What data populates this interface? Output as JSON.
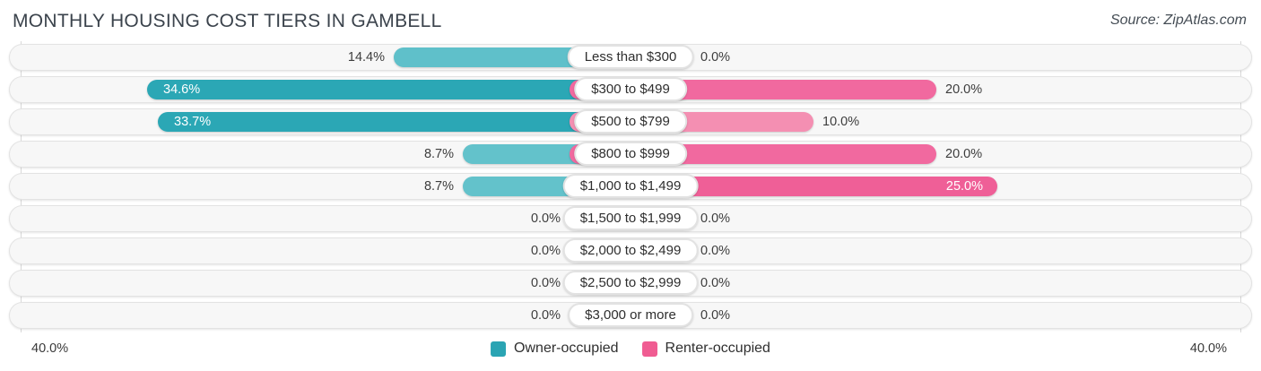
{
  "header": {
    "title": "MONTHLY HOUSING COST TIERS IN GAMBELL",
    "source": "Source: ZipAtlas.com"
  },
  "axis": {
    "left_label": "40.0%",
    "right_label": "40.0%",
    "max_percent": 40.0
  },
  "legend": {
    "items": [
      {
        "label": "Owner-occupied",
        "color": "#2aa4b3"
      },
      {
        "label": "Renter-occupied",
        "color": "#f05c92"
      }
    ]
  },
  "chart_data": {
    "type": "bar",
    "orientation": "diverging-horizontal",
    "title": "Monthly Housing Cost Tiers in Gambell",
    "categories": [
      "Less than $300",
      "$300 to $499",
      "$500 to $799",
      "$800 to $999",
      "$1,000 to $1,499",
      "$1,500 to $1,999",
      "$2,000 to $2,499",
      "$2,500 to $2,999",
      "$3,000 or more"
    ],
    "series": [
      {
        "name": "Owner-occupied",
        "side": "left",
        "values": [
          14.4,
          34.6,
          33.7,
          8.7,
          8.7,
          0.0,
          0.0,
          0.0,
          0.0
        ]
      },
      {
        "name": "Renter-occupied",
        "side": "right",
        "values": [
          0.0,
          20.0,
          10.0,
          20.0,
          25.0,
          0.0,
          0.0,
          0.0,
          0.0
        ]
      }
    ],
    "xlim_left": 40.0,
    "xlim_right": 40.0,
    "value_suffix": "%",
    "legend_position": "bottom-center",
    "grid": false
  },
  "rows": [
    {
      "category": "Less than $300",
      "owner_value": 14.4,
      "owner_label": "14.4%",
      "owner_color": "#5fc0ca",
      "owner_inside": false,
      "renter_value": 0.0,
      "renter_label": "0.0%",
      "renter_color": "#f5a6c2",
      "renter_inside": false
    },
    {
      "category": "$300 to $499",
      "owner_value": 34.6,
      "owner_label": "34.6%",
      "owner_color": "#2ba7b5",
      "owner_inside": true,
      "renter_value": 20.0,
      "renter_label": "20.0%",
      "renter_color": "#f1699f",
      "renter_inside": false
    },
    {
      "category": "$500 to $799",
      "owner_value": 33.7,
      "owner_label": "33.7%",
      "owner_color": "#2ba7b5",
      "owner_inside": true,
      "renter_value": 10.0,
      "renter_label": "10.0%",
      "renter_color": "#f48fb2",
      "renter_inside": false
    },
    {
      "category": "$800 to $999",
      "owner_value": 8.7,
      "owner_label": "8.7%",
      "owner_color": "#63c2cb",
      "owner_inside": false,
      "renter_value": 20.0,
      "renter_label": "20.0%",
      "renter_color": "#f1699f",
      "renter_inside": false
    },
    {
      "category": "$1,000 to $1,499",
      "owner_value": 8.7,
      "owner_label": "8.7%",
      "owner_color": "#63c2cb",
      "owner_inside": false,
      "renter_value": 25.0,
      "renter_label": "25.0%",
      "renter_color": "#ef5f97",
      "renter_inside": true
    },
    {
      "category": "$1,500 to $1,999",
      "owner_value": 0.0,
      "owner_label": "0.0%",
      "owner_color": "#84ced5",
      "owner_inside": false,
      "renter_value": 0.0,
      "renter_label": "0.0%",
      "renter_color": "#f5a6c2",
      "renter_inside": false
    },
    {
      "category": "$2,000 to $2,499",
      "owner_value": 0.0,
      "owner_label": "0.0%",
      "owner_color": "#84ced5",
      "owner_inside": false,
      "renter_value": 0.0,
      "renter_label": "0.0%",
      "renter_color": "#f5a6c2",
      "renter_inside": false
    },
    {
      "category": "$2,500 to $2,999",
      "owner_value": 0.0,
      "owner_label": "0.0%",
      "owner_color": "#84ced5",
      "owner_inside": false,
      "renter_value": 0.0,
      "renter_label": "0.0%",
      "renter_color": "#f5a6c2",
      "renter_inside": false
    },
    {
      "category": "$3,000 or more",
      "owner_value": 0.0,
      "owner_label": "0.0%",
      "owner_color": "#84ced5",
      "owner_inside": false,
      "renter_value": 0.0,
      "renter_label": "0.0%",
      "renter_color": "#f5a6c2",
      "renter_inside": false
    }
  ]
}
